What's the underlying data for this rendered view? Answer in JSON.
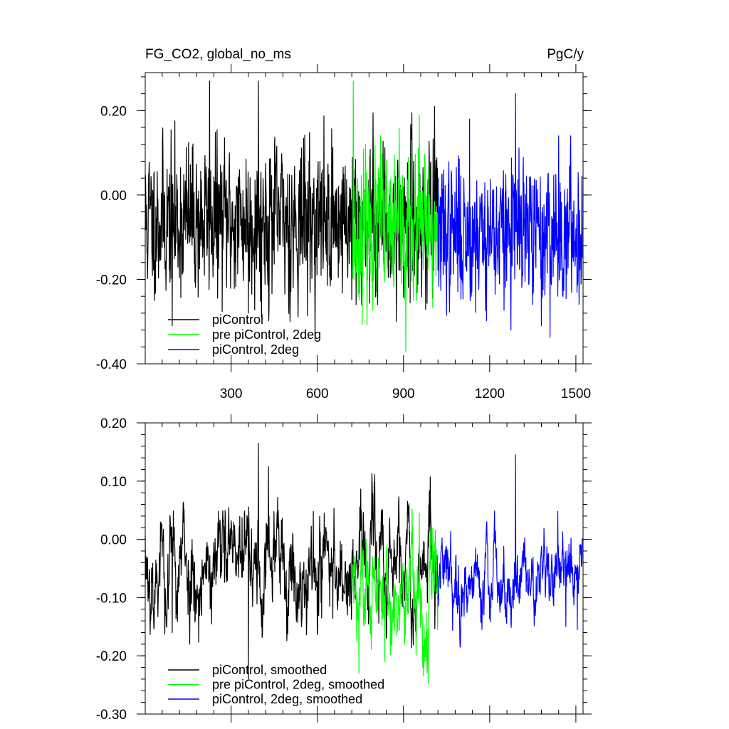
{
  "chart_data": [
    {
      "type": "line",
      "title_left": "FG_CO2, global_no_ms",
      "title_right": "PgC/y",
      "xlim": [
        1,
        1525
      ],
      "ylim": [
        -0.4,
        0.29
      ],
      "x_ticks": [
        300,
        600,
        900,
        1200,
        1500
      ],
      "x_tick_labels": [
        "300",
        "600",
        "900",
        "1200",
        "1500"
      ],
      "y_ticks": [
        -0.4,
        -0.2,
        0.0,
        0.2
      ],
      "y_tick_labels": [
        "-0.40",
        "-0.20",
        "0.00",
        "0.20"
      ],
      "grid": false,
      "legend_position": "bottom-left",
      "series": [
        {
          "name": "piControl",
          "color": "#000000",
          "x_start": 1,
          "x_end": 1020,
          "mean": -0.06,
          "amp": 0.14,
          "seed": 11,
          "anchors": [
            [
              395,
              0.27
            ],
            [
              225,
              0.27
            ],
            [
              360,
              -0.28
            ],
            [
              505,
              -0.3
            ],
            [
              95,
              -0.31
            ],
            [
              735,
              -0.26
            ]
          ]
        },
        {
          "name": "pre piControl, 2deg",
          "color": "#00ff00",
          "x_start": 722,
          "x_end": 1022,
          "mean": -0.09,
          "amp": 0.13,
          "seed": 23,
          "anchors": [
            [
              725,
              0.27
            ],
            [
              908,
              -0.37
            ],
            [
              955,
              0.19
            ],
            [
              820,
              0.14
            ]
          ]
        },
        {
          "name": "piControl, 2deg",
          "color": "#0000ff",
          "x_start": 1020,
          "x_end": 1522,
          "mean": -0.09,
          "amp": 0.13,
          "seed": 37,
          "anchors": [
            [
              1290,
              0.24
            ],
            [
              1380,
              -0.31
            ],
            [
              1130,
              0.18
            ],
            [
              1440,
              0.14
            ]
          ]
        }
      ]
    },
    {
      "type": "line",
      "xlim": [
        1,
        1525
      ],
      "ylim": [
        -0.3,
        0.2
      ],
      "x_ticks": [
        300,
        600,
        900,
        1200,
        1500
      ],
      "y_ticks": [
        -0.3,
        -0.2,
        -0.1,
        0.0,
        0.1,
        0.2
      ],
      "y_tick_labels": [
        "-0.30",
        "-0.20",
        "-0.10",
        "0.00",
        "0.10",
        "0.20"
      ],
      "grid": false,
      "legend_position": "bottom-left",
      "series": [
        {
          "name": "piControl, smoothed",
          "color": "#000000",
          "x_start": 1,
          "x_end": 1020,
          "mean": -0.045,
          "amp": 0.065,
          "seed": 53,
          "anchors": [
            [
              395,
              0.165
            ],
            [
              360,
              -0.24
            ],
            [
              95,
              -0.16
            ],
            [
              615,
              -0.135
            ],
            [
              430,
              0.125
            ]
          ]
        },
        {
          "name": "pre piControl, 2deg, smoothed",
          "color": "#00ff00",
          "x_start": 722,
          "x_end": 1022,
          "mean": -0.09,
          "amp": 0.065,
          "seed": 61,
          "anchors": [
            [
              745,
              -0.23
            ],
            [
              835,
              -0.21
            ],
            [
              955,
              0.045
            ],
            [
              770,
              0.0
            ]
          ]
        },
        {
          "name": "piControl, 2deg, smoothed",
          "color": "#0000ff",
          "x_start": 1020,
          "x_end": 1522,
          "mean": -0.065,
          "amp": 0.045,
          "seed": 79,
          "anchors": [
            [
              1290,
              0.145
            ],
            [
              1437,
              0.048
            ],
            [
              1505,
              -0.155
            ],
            [
              1465,
              -0.15
            ],
            [
              1180,
              -0.13
            ]
          ]
        }
      ]
    }
  ]
}
